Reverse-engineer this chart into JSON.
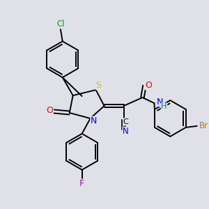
{
  "bg_color": "#e0e0e8",
  "atom_colors": {
    "C": "#000000",
    "N": "#0000ff",
    "O": "#ff0000",
    "S": "#cccc00",
    "F": "#cc00cc",
    "Cl": "#00aa00",
    "Br": "#cc7700",
    "H": "#008080"
  },
  "figsize": [
    3.0,
    3.0
  ],
  "dpi": 100
}
